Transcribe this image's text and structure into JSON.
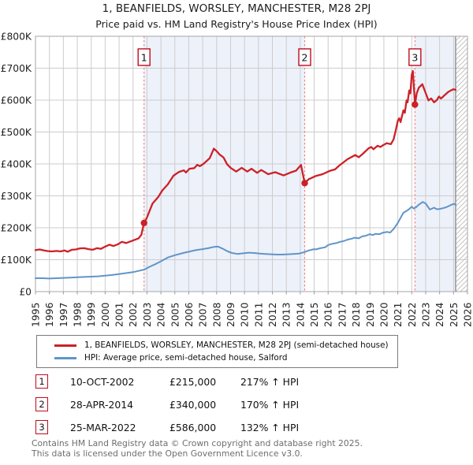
{
  "header": {
    "title": "1, BEANFIELDS, WORSLEY, MANCHESTER, M28 2PJ",
    "subtitle": "Price paid vs. HM Land Registry's House Price Index (HPI)"
  },
  "legend": {
    "property": "1, BEANFIELDS, WORSLEY, MANCHESTER, M28 2PJ (semi-detached house)",
    "hpi": "HPI: Average price, semi-detached house, Salford"
  },
  "sales_table": {
    "rows": [
      {
        "num": "1",
        "date": "10-OCT-2002",
        "price": "£215,000",
        "hpi": "217% ↑ HPI"
      },
      {
        "num": "2",
        "date": "28-APR-2014",
        "price": "£340,000",
        "hpi": "170% ↑ HPI"
      },
      {
        "num": "3",
        "date": "25-MAR-2022",
        "price": "£586,000",
        "hpi": "132% ↑ HPI"
      }
    ]
  },
  "footer": {
    "line1": "Contains HM Land Registry data © Crown copyright and database right 2025.",
    "line2": "This data is licensed under the Open Government Licence v3.0."
  },
  "colors": {
    "property_line": "#cc2127",
    "hpi_line": "#6095c8",
    "dashed_sale_line": "#f08080",
    "shaded_band": "#edf1fa",
    "grid": "#cccccc",
    "plot_border": "#a6a6a6",
    "hatch": "#c4c4c4",
    "marker_box_border": "#c00b1e",
    "axis_text": "#222222"
  },
  "chart_data": {
    "type": "line",
    "title": "1, BEANFIELDS, WORSLEY, MANCHESTER, M28 2PJ — Price paid vs. HPI",
    "x_range": [
      1995,
      2026
    ],
    "y_range": [
      0,
      800000
    ],
    "grid": true,
    "legend_position": "bottom",
    "x_ticks": [
      1995,
      1996,
      1997,
      1998,
      1999,
      2000,
      2001,
      2002,
      2003,
      2004,
      2005,
      2006,
      2007,
      2008,
      2009,
      2010,
      2011,
      2012,
      2013,
      2014,
      2015,
      2016,
      2017,
      2018,
      2019,
      2020,
      2021,
      2022,
      2023,
      2024,
      2025,
      2026
    ],
    "y_ticks": [
      {
        "label": "£0",
        "value": 0
      },
      {
        "label": "£100K",
        "value": 100000
      },
      {
        "label": "£200K",
        "value": 200000
      },
      {
        "label": "£300K",
        "value": 300000
      },
      {
        "label": "£400K",
        "value": 400000
      },
      {
        "label": "£500K",
        "value": 500000
      },
      {
        "label": "£600K",
        "value": 600000
      },
      {
        "label": "£700K",
        "value": 700000
      },
      {
        "label": "£800K",
        "value": 800000
      }
    ],
    "shaded_bands": [
      [
        2002.79,
        2014.32
      ],
      [
        2022.23,
        2025.15
      ]
    ],
    "hatch_start": 2025.15,
    "sales": [
      {
        "n": "1",
        "date": "10-OCT-2002",
        "year": 2002.79,
        "price": 215000,
        "pct_above_hpi": 217
      },
      {
        "n": "2",
        "date": "28-APR-2014",
        "year": 2014.32,
        "price": 340000,
        "pct_above_hpi": 170
      },
      {
        "n": "3",
        "date": "25-MAR-2022",
        "year": 2022.23,
        "price": 586000,
        "pct_above_hpi": 132
      }
    ],
    "series": [
      {
        "name": "1, BEANFIELDS, WORSLEY, MANCHESTER, M28 2PJ (semi-detached house)",
        "color": "#cc2127",
        "points": [
          [
            1995.0,
            130000
          ],
          [
            1995.3,
            132000
          ],
          [
            1995.6,
            129000
          ],
          [
            1995.9,
            127000
          ],
          [
            1996.2,
            126000
          ],
          [
            1996.5,
            127500
          ],
          [
            1996.8,
            126000
          ],
          [
            1997.1,
            129000
          ],
          [
            1997.3,
            125000
          ],
          [
            1997.6,
            131000
          ],
          [
            1997.9,
            132000
          ],
          [
            1998.2,
            135500
          ],
          [
            1998.5,
            136000
          ],
          [
            1998.8,
            133000
          ],
          [
            1999.1,
            131000
          ],
          [
            1999.4,
            136000
          ],
          [
            1999.7,
            134000
          ],
          [
            2000.0,
            141000
          ],
          [
            2000.3,
            147000
          ],
          [
            2000.6,
            143000
          ],
          [
            2000.9,
            148000
          ],
          [
            2001.2,
            156000
          ],
          [
            2001.5,
            152000
          ],
          [
            2001.8,
            157000
          ],
          [
            2002.1,
            162000
          ],
          [
            2002.4,
            167000
          ],
          [
            2002.6,
            178000
          ],
          [
            2002.79,
            215000
          ],
          [
            2003.0,
            232000
          ],
          [
            2003.4,
            276000
          ],
          [
            2003.8,
            296000
          ],
          [
            2004.1,
            317000
          ],
          [
            2004.5,
            336000
          ],
          [
            2004.9,
            363000
          ],
          [
            2005.3,
            375000
          ],
          [
            2005.65,
            380000
          ],
          [
            2005.8,
            373000
          ],
          [
            2006.05,
            385000
          ],
          [
            2006.4,
            387000
          ],
          [
            2006.6,
            397000
          ],
          [
            2006.8,
            393000
          ],
          [
            2007.05,
            400000
          ],
          [
            2007.3,
            410000
          ],
          [
            2007.5,
            418000
          ],
          [
            2007.8,
            448000
          ],
          [
            2008.0,
            440000
          ],
          [
            2008.2,
            430000
          ],
          [
            2008.5,
            420000
          ],
          [
            2008.75,
            399000
          ],
          [
            2009.0,
            388000
          ],
          [
            2009.4,
            376000
          ],
          [
            2009.8,
            388000
          ],
          [
            2010.2,
            376000
          ],
          [
            2010.5,
            385000
          ],
          [
            2010.9,
            372000
          ],
          [
            2011.2,
            381000
          ],
          [
            2011.7,
            368000
          ],
          [
            2012.2,
            374000
          ],
          [
            2012.8,
            364000
          ],
          [
            2013.3,
            373000
          ],
          [
            2013.7,
            379000
          ],
          [
            2014.05,
            397000
          ],
          [
            2014.32,
            340000
          ],
          [
            2014.6,
            352000
          ],
          [
            2015.1,
            362000
          ],
          [
            2015.6,
            368000
          ],
          [
            2016.1,
            378000
          ],
          [
            2016.5,
            383000
          ],
          [
            2016.8,
            395000
          ],
          [
            2017.1,
            405000
          ],
          [
            2017.4,
            415000
          ],
          [
            2017.95,
            428000
          ],
          [
            2018.2,
            421000
          ],
          [
            2018.5,
            432000
          ],
          [
            2018.9,
            449000
          ],
          [
            2019.1,
            453000
          ],
          [
            2019.25,
            446000
          ],
          [
            2019.55,
            457000
          ],
          [
            2019.75,
            453000
          ],
          [
            2019.95,
            459000
          ],
          [
            2020.2,
            465000
          ],
          [
            2020.5,
            462000
          ],
          [
            2020.7,
            477000
          ],
          [
            2020.85,
            505000
          ],
          [
            2021.0,
            535000
          ],
          [
            2021.1,
            543000
          ],
          [
            2021.2,
            531000
          ],
          [
            2021.4,
            568000
          ],
          [
            2021.5,
            560000
          ],
          [
            2021.63,
            599000
          ],
          [
            2021.7,
            593000
          ],
          [
            2021.82,
            630000
          ],
          [
            2021.9,
            621000
          ],
          [
            2022.0,
            679000
          ],
          [
            2022.08,
            691000
          ],
          [
            2022.23,
            586000
          ],
          [
            2022.35,
            620000
          ],
          [
            2022.5,
            638000
          ],
          [
            2022.76,
            650000
          ],
          [
            2023.0,
            622000
          ],
          [
            2023.2,
            599000
          ],
          [
            2023.4,
            605000
          ],
          [
            2023.6,
            593000
          ],
          [
            2023.8,
            600000
          ],
          [
            2023.95,
            611000
          ],
          [
            2024.1,
            605000
          ],
          [
            2024.4,
            617000
          ],
          [
            2024.6,
            625000
          ],
          [
            2024.8,
            630000
          ],
          [
            2025.0,
            634000
          ],
          [
            2025.15,
            632000
          ]
        ]
      },
      {
        "name": "HPI: Average price, semi-detached house, Salford",
        "color": "#6095c8",
        "points": [
          [
            1995.0,
            42000
          ],
          [
            1995.5,
            42000
          ],
          [
            1996.0,
            41000
          ],
          [
            1996.5,
            42000
          ],
          [
            1997.0,
            43000
          ],
          [
            1997.5,
            44000
          ],
          [
            1998.0,
            45000
          ],
          [
            1998.5,
            46000
          ],
          [
            1999.0,
            47000
          ],
          [
            1999.5,
            48000
          ],
          [
            2000.0,
            50000
          ],
          [
            2000.5,
            52000
          ],
          [
            2001.0,
            55000
          ],
          [
            2001.5,
            58000
          ],
          [
            2002.0,
            61000
          ],
          [
            2002.4,
            65000
          ],
          [
            2002.79,
            69000
          ],
          [
            2003.2,
            78000
          ],
          [
            2003.6,
            86000
          ],
          [
            2004.0,
            95000
          ],
          [
            2004.5,
            107000
          ],
          [
            2005.0,
            114000
          ],
          [
            2005.6,
            121000
          ],
          [
            2006.0,
            125000
          ],
          [
            2006.5,
            130000
          ],
          [
            2007.0,
            133000
          ],
          [
            2007.4,
            136000
          ],
          [
            2007.8,
            140000
          ],
          [
            2008.1,
            141000
          ],
          [
            2008.4,
            135000
          ],
          [
            2008.8,
            126000
          ],
          [
            2009.1,
            121000
          ],
          [
            2009.5,
            118000
          ],
          [
            2009.9,
            120000
          ],
          [
            2010.3,
            122000
          ],
          [
            2010.7,
            121000
          ],
          [
            2011.1,
            119000
          ],
          [
            2011.5,
            118000
          ],
          [
            2011.9,
            117000
          ],
          [
            2012.3,
            116000
          ],
          [
            2012.7,
            116000
          ],
          [
            2013.1,
            117000
          ],
          [
            2013.5,
            118000
          ],
          [
            2013.9,
            119000
          ],
          [
            2014.32,
            124000
          ],
          [
            2014.6,
            129000
          ],
          [
            2015.0,
            133000
          ],
          [
            2015.1,
            132000
          ],
          [
            2015.45,
            136000
          ],
          [
            2015.8,
            139000
          ],
          [
            2016.0,
            146000
          ],
          [
            2016.3,
            150000
          ],
          [
            2016.6,
            152000
          ],
          [
            2016.85,
            156000
          ],
          [
            2017.1,
            158000
          ],
          [
            2017.4,
            163000
          ],
          [
            2017.7,
            166000
          ],
          [
            2017.9,
            169000
          ],
          [
            2018.2,
            167000
          ],
          [
            2018.45,
            173000
          ],
          [
            2018.7,
            175000
          ],
          [
            2019.0,
            180000
          ],
          [
            2019.2,
            177000
          ],
          [
            2019.4,
            181000
          ],
          [
            2019.7,
            180000
          ],
          [
            2019.95,
            185000
          ],
          [
            2020.25,
            187000
          ],
          [
            2020.45,
            185000
          ],
          [
            2020.7,
            196000
          ],
          [
            2021.0,
            215000
          ],
          [
            2021.25,
            235000
          ],
          [
            2021.4,
            247000
          ],
          [
            2021.6,
            252000
          ],
          [
            2021.8,
            258000
          ],
          [
            2022.0,
            266000
          ],
          [
            2022.16,
            260000
          ],
          [
            2022.3,
            264000
          ],
          [
            2022.5,
            272000
          ],
          [
            2022.8,
            281000
          ],
          [
            2023.0,
            276000
          ],
          [
            2023.3,
            257000
          ],
          [
            2023.6,
            263000
          ],
          [
            2023.8,
            258000
          ],
          [
            2024.0,
            259000
          ],
          [
            2024.2,
            261000
          ],
          [
            2024.45,
            264000
          ],
          [
            2024.65,
            268000
          ],
          [
            2024.85,
            272000
          ],
          [
            2025.03,
            275000
          ],
          [
            2025.15,
            272000
          ]
        ]
      }
    ]
  }
}
